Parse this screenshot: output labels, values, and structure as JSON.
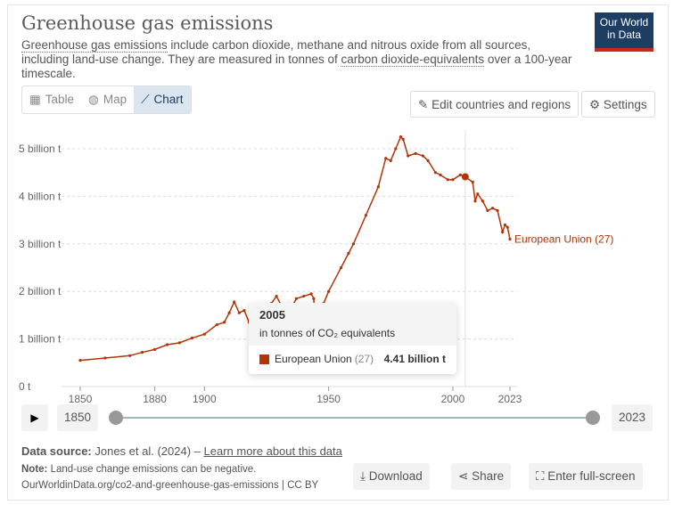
{
  "header": {
    "title": "Greenhouse gas emissions",
    "sub_link1": "Greenhouse gas emissions",
    "sub_text1": " include carbon dioxide, methane and nitrous oxide from all sources, including land-use change. They are measured in tonnes of ",
    "sub_link2": "carbon dioxide-equivalents",
    "sub_text2": " over a 100-year timescale.",
    "logo": "Our World in Data"
  },
  "tabs": [
    "Table",
    "Map",
    "Chart"
  ],
  "buttons": {
    "edit": "Edit countries and regions",
    "settings": "Settings",
    "download": "Download",
    "share": "Share",
    "fullscreen": "Enter full-screen"
  },
  "timeline": {
    "start": "1850",
    "end": "2023"
  },
  "tooltip": {
    "year": "2005",
    "unit": "in tonnes of CO₂ equivalents",
    "entity": "European Union",
    "count": "(27)",
    "value": "4.41 billion t"
  },
  "footer": {
    "source_label": "Data source:",
    "source": " Jones et al. (2024) – ",
    "learn": "Learn more about this data",
    "note_label": "Note:",
    "note": " Land-use change emissions can be negative.",
    "url": "OurWorldinData.org/co2-and-greenhouse-gas-emissions | CC BY"
  },
  "colors": {
    "series": "#b13507"
  },
  "chart_data": {
    "type": "line",
    "title": "Greenhouse gas emissions",
    "ylabel": "tonnes CO2e",
    "xlim": [
      1850,
      2023
    ],
    "ylim": [
      0,
      5.3
    ],
    "yticks": [
      0,
      1,
      2,
      3,
      4,
      5
    ],
    "ytick_labels": [
      "0 t",
      "1 billion t",
      "2 billion t",
      "3 billion t",
      "4 billion t",
      "5 billion t"
    ],
    "xticks": [
      1850,
      1880,
      1900,
      1950,
      2000,
      2023
    ],
    "xtick_labels": [
      "1850",
      "1880",
      "1900",
      "1950",
      "2000",
      "2023"
    ],
    "series": [
      {
        "name": "European Union (27)",
        "points": [
          [
            1850,
            0.55
          ],
          [
            1860,
            0.6
          ],
          [
            1870,
            0.65
          ],
          [
            1875,
            0.72
          ],
          [
            1880,
            0.78
          ],
          [
            1885,
            0.88
          ],
          [
            1890,
            0.92
          ],
          [
            1895,
            1.02
          ],
          [
            1900,
            1.1
          ],
          [
            1905,
            1.3
          ],
          [
            1908,
            1.35
          ],
          [
            1910,
            1.55
          ],
          [
            1912,
            1.78
          ],
          [
            1914,
            1.55
          ],
          [
            1916,
            1.6
          ],
          [
            1918,
            1.35
          ],
          [
            1920,
            1.5
          ],
          [
            1922,
            1.45
          ],
          [
            1925,
            1.65
          ],
          [
            1927,
            1.75
          ],
          [
            1929,
            1.9
          ],
          [
            1931,
            1.7
          ],
          [
            1933,
            1.55
          ],
          [
            1935,
            1.65
          ],
          [
            1937,
            1.85
          ],
          [
            1940,
            1.9
          ],
          [
            1943,
            1.95
          ],
          [
            1944,
            1.85
          ],
          [
            1945,
            1.05
          ],
          [
            1946,
            1.45
          ],
          [
            1948,
            1.75
          ],
          [
            1950,
            2.0
          ],
          [
            1955,
            2.5
          ],
          [
            1958,
            2.8
          ],
          [
            1960,
            3.0
          ],
          [
            1965,
            3.6
          ],
          [
            1970,
            4.2
          ],
          [
            1973,
            4.8
          ],
          [
            1975,
            4.75
          ],
          [
            1977,
            5.0
          ],
          [
            1979,
            5.25
          ],
          [
            1980,
            5.2
          ],
          [
            1982,
            4.85
          ],
          [
            1985,
            4.9
          ],
          [
            1988,
            4.85
          ],
          [
            1990,
            4.75
          ],
          [
            1993,
            4.5
          ],
          [
            1995,
            4.45
          ],
          [
            1998,
            4.35
          ],
          [
            2000,
            4.35
          ],
          [
            2003,
            4.45
          ],
          [
            2005,
            4.41
          ],
          [
            2008,
            4.3
          ],
          [
            2009,
            3.9
          ],
          [
            2010,
            4.05
          ],
          [
            2012,
            3.9
          ],
          [
            2014,
            3.7
          ],
          [
            2016,
            3.75
          ],
          [
            2018,
            3.7
          ],
          [
            2020,
            3.25
          ],
          [
            2021,
            3.4
          ],
          [
            2022,
            3.35
          ],
          [
            2023,
            3.1
          ]
        ]
      }
    ],
    "highlight_year": 2005
  }
}
